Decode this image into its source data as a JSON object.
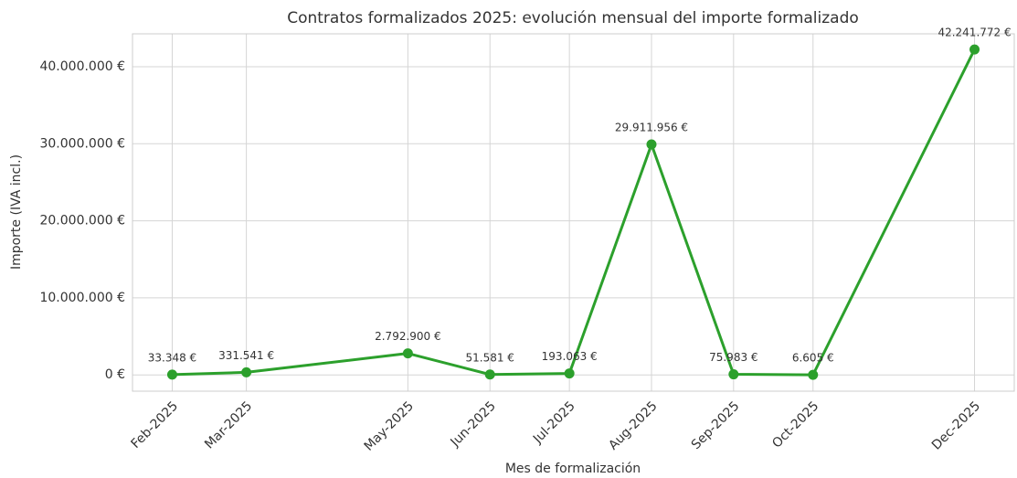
{
  "chart_data": {
    "type": "line",
    "title": "Contratos formalizados 2025: evolución mensual del importe formalizado",
    "x_label": "Mes de formalización",
    "y_label": "Importe (IVA incl.)",
    "x": [
      "2025-02",
      "2025-03",
      "2025-05",
      "2025-06",
      "2025-07",
      "2025-08",
      "2025-09",
      "2025-10",
      "2025-12"
    ],
    "xticks": [
      {
        "value": "2025-02",
        "label": "Feb-2025"
      },
      {
        "value": "2025-03",
        "label": "Mar-2025"
      },
      {
        "value": "2025-05",
        "label": "May-2025"
      },
      {
        "value": "2025-06",
        "label": "Jun-2025"
      },
      {
        "value": "2025-07",
        "label": "Jul-2025"
      },
      {
        "value": "2025-08",
        "label": "Aug-2025"
      },
      {
        "value": "2025-09",
        "label": "Sep-2025"
      },
      {
        "value": "2025-10",
        "label": "Oct-2025"
      },
      {
        "value": "2025-12",
        "label": "Dec-2025"
      }
    ],
    "xlim": [
      "2025-01-17",
      "2025-12-16"
    ],
    "series": [
      {
        "name": "Importe",
        "color": "#2ca02c",
        "values": [
          33348,
          331541,
          2792900,
          51581,
          193063,
          29911956,
          75983,
          6605,
          42241772
        ],
        "value_labels": [
          "33.348 €",
          "331.541 €",
          "2.792.900 €",
          "51.581 €",
          "193.063 €",
          "29.911.956 €",
          "75.983 €",
          "6.605 €",
          "42.241.772 €"
        ]
      }
    ],
    "ylim": [
      -2112000,
      44270000
    ],
    "yticks": [
      {
        "value": 0,
        "label": "0 €"
      },
      {
        "value": 10000000,
        "label": "10.000.000 €"
      },
      {
        "value": 20000000,
        "label": "20.000.000 €"
      },
      {
        "value": 30000000,
        "label": "30.000.000 €"
      },
      {
        "value": 40000000,
        "label": "40.000.000 €"
      }
    ],
    "grid": true
  }
}
